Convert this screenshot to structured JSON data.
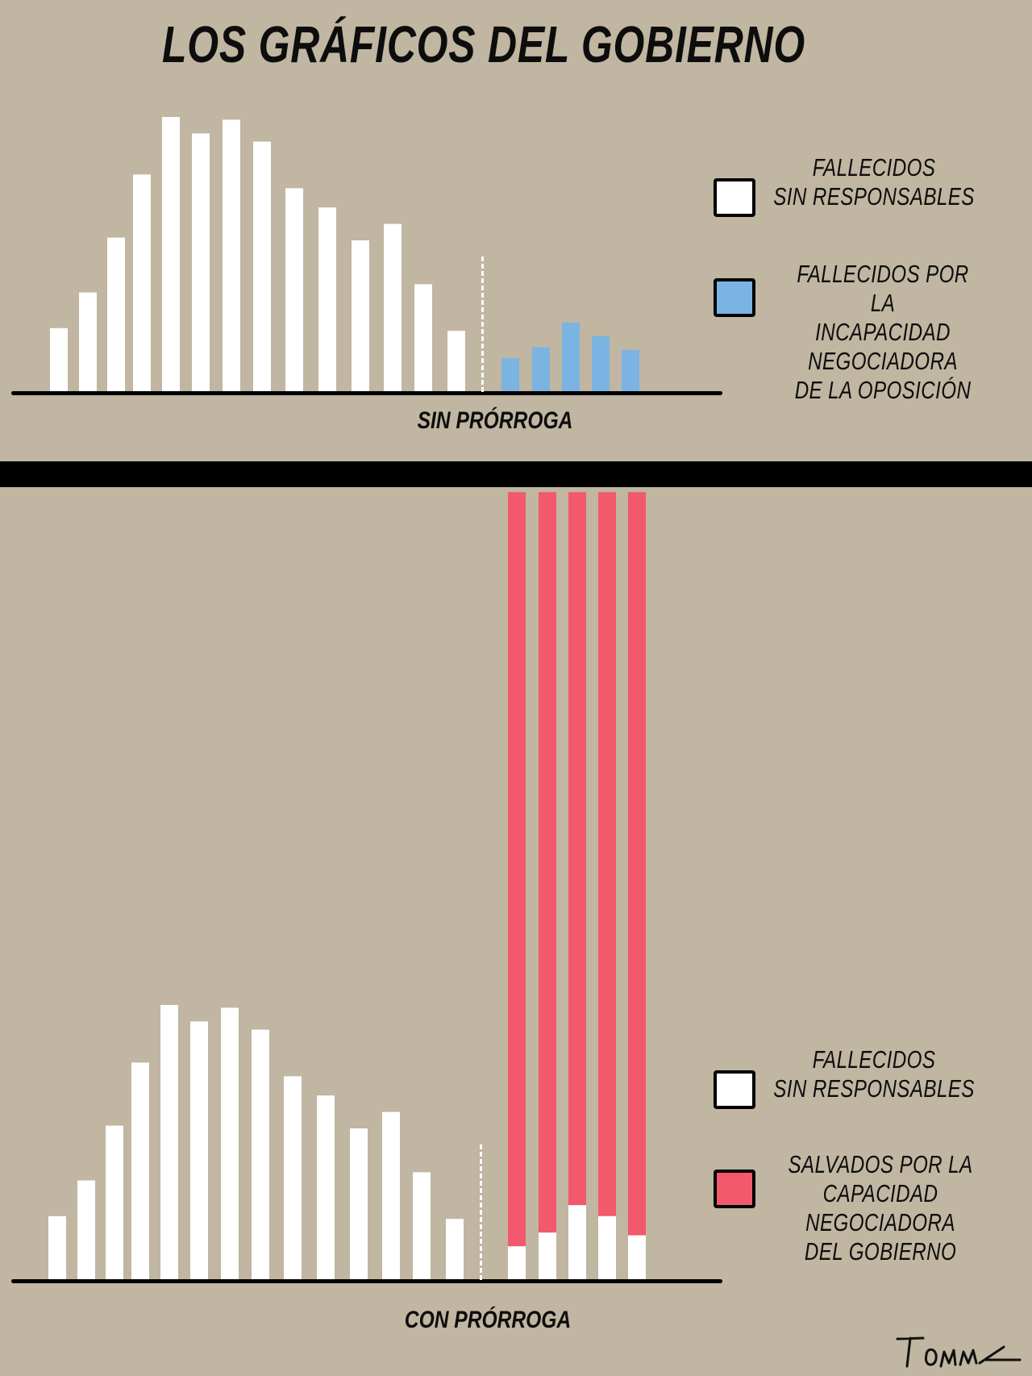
{
  "title": "LOS GRÁFICOS DEL GOBIERNO",
  "colors": {
    "background": "#c0b6a1",
    "white_bars": "#ffffff",
    "blue_bars": "#7bb3e3",
    "red_bars": "#f2596d",
    "ink": "#0d0d0d"
  },
  "signature": "Tomás",
  "chart_data": [
    {
      "type": "bar",
      "title": "",
      "xlabel": "SIN PRÓRROGA",
      "ylabel": "",
      "ylim": [
        0,
        100
      ],
      "grid": false,
      "legend_placement": "right",
      "series": [
        {
          "name": "FALLECIDOS SIN RESPONSABLES",
          "color": "#ffffff",
          "values": [
            23,
            36,
            56,
            79,
            100,
            94,
            99,
            91,
            74,
            67,
            55,
            61,
            39,
            22
          ]
        },
        {
          "name": "FALLECIDOS POR LA INCAPACIDAD NEGOCIADORA DE LA OPOSICIÓN",
          "color": "#7bb3e3",
          "values": [
            12,
            16,
            25,
            20,
            15
          ]
        }
      ]
    },
    {
      "type": "bar",
      "title": "",
      "xlabel": "CON PRÓRROGA",
      "ylabel": "",
      "ylim": [
        0,
        100
      ],
      "grid": false,
      "legend_placement": "right",
      "series": [
        {
          "name": "FALLECIDOS SIN RESPONSABLES",
          "color": "#ffffff",
          "values": [
            23,
            36,
            56,
            79,
            100,
            94,
            99,
            91,
            74,
            67,
            55,
            61,
            39,
            22
          ]
        },
        {
          "name": "FALLECIDOS SIN RESPONSABLES (tramo final)",
          "color": "#ffffff",
          "values": [
            12,
            17,
            27,
            23,
            16
          ]
        },
        {
          "name": "SALVADOS POR LA CAPACIDAD NEGOCIADORA DEL GOBIERNO",
          "color": "#f2596d",
          "values": [
            275,
            270,
            260,
            264,
            271
          ]
        }
      ]
    }
  ],
  "top": {
    "caption": "SIN PRÓRROGA",
    "legend": [
      {
        "lines": [
          "FALLECIDOS",
          "SIN RESPONSABLES"
        ],
        "color": "#ffffff"
      },
      {
        "lines": [
          "FALLECIDOS POR LA",
          "INCAPACIDAD NEGOCIADORA",
          "DE LA OPOSICIÓN"
        ],
        "color": "#7bb3e3"
      }
    ]
  },
  "bottom": {
    "caption": "CON PRÓRROGA",
    "legend": [
      {
        "lines": [
          "FALLECIDOS",
          "SIN RESPONSABLES"
        ],
        "color": "#ffffff"
      },
      {
        "lines": [
          "SALVADOS POR LA",
          "CAPACIDAD NEGOCIADORA",
          "DEL GOBIERNO"
        ],
        "color": "#f2596d"
      }
    ]
  }
}
